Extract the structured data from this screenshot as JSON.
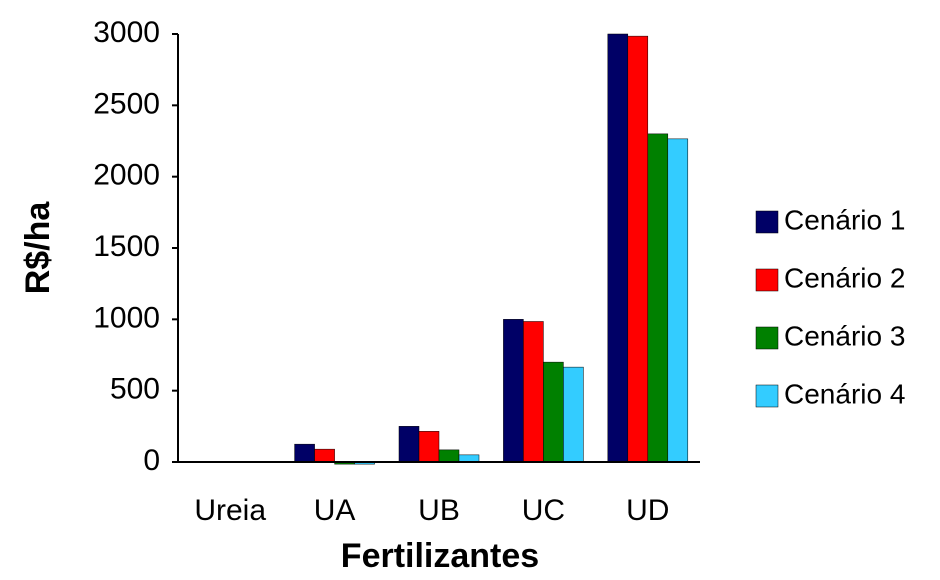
{
  "chart_data": {
    "type": "bar",
    "x_label": "Fertilizantes",
    "y_label": "R$/ha",
    "categories": [
      "Ureia",
      "UA",
      "UB",
      "UC",
      "UD"
    ],
    "series": [
      {
        "name": "Cenário 1",
        "color": "#000066",
        "values": [
          0,
          125,
          250,
          1000,
          3000
        ]
      },
      {
        "name": "Cenário 2",
        "color": "#ff0000",
        "values": [
          0,
          90,
          215,
          985,
          2985
        ]
      },
      {
        "name": "Cenário 3",
        "color": "#008000",
        "values": [
          0,
          -15,
          85,
          700,
          2300
        ]
      },
      {
        "name": "Cenário 4",
        "color": "#33ccff",
        "values": [
          0,
          -15,
          50,
          665,
          2265
        ]
      }
    ],
    "ylim": [
      0,
      3000
    ],
    "yticks": [
      0,
      500,
      1000,
      1500,
      2000,
      2500,
      3000
    ],
    "grid": false,
    "legend": "right"
  }
}
